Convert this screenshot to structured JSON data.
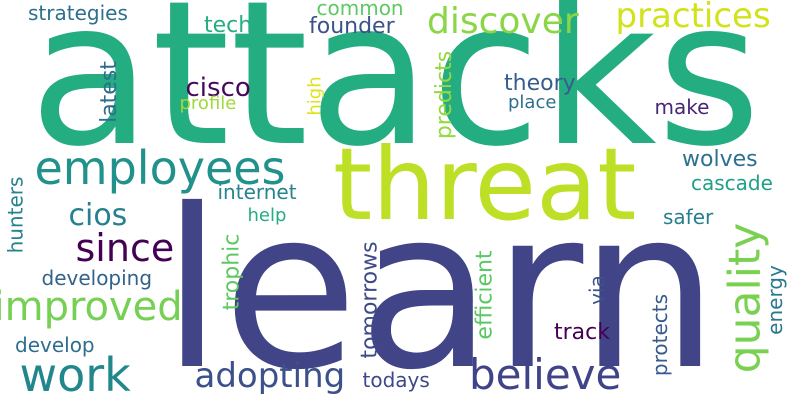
{
  "words": [
    {
      "text": "attacks",
      "color": "#25ad82",
      "vertical": false
    },
    {
      "text": "learn",
      "color": "#414487",
      "vertical": false
    },
    {
      "text": "threat",
      "color": "#bddf26",
      "vertical": false
    },
    {
      "text": "employees",
      "color": "#21918c",
      "vertical": false
    },
    {
      "text": "believe",
      "color": "#404387",
      "vertical": false
    },
    {
      "text": "quality",
      "color": "#7ad151",
      "vertical": true
    },
    {
      "text": "work",
      "color": "#22868d",
      "vertical": false
    },
    {
      "text": "improved",
      "color": "#75d054",
      "vertical": false
    },
    {
      "text": "adopting",
      "color": "#3c508b",
      "vertical": false
    },
    {
      "text": "since",
      "color": "#440154",
      "vertical": false
    },
    {
      "text": "discover",
      "color": "#8bd646",
      "vertical": false
    },
    {
      "text": "practices",
      "color": "#d2e21b",
      "vertical": false
    },
    {
      "text": "cios",
      "color": "#26818e",
      "vertical": false
    },
    {
      "text": "strategies",
      "color": "#2d708e",
      "vertical": false
    },
    {
      "text": "tech",
      "color": "#26ad81",
      "vertical": false
    },
    {
      "text": "common",
      "color": "#5ec962",
      "vertical": false
    },
    {
      "text": "founder",
      "color": "#3b528b",
      "vertical": false
    },
    {
      "text": "latest",
      "color": "#2f6c8e",
      "vertical": true
    },
    {
      "text": "cisco",
      "color": "#46085c",
      "vertical": false
    },
    {
      "text": "profile",
      "color": "#a0da39",
      "vertical": false
    },
    {
      "text": "high",
      "color": "#dde318",
      "vertical": true
    },
    {
      "text": "predicts",
      "color": "#95d840",
      "vertical": true
    },
    {
      "text": "theory",
      "color": "#365d8d",
      "vertical": false
    },
    {
      "text": "place",
      "color": "#2e6f8e",
      "vertical": false
    },
    {
      "text": "make",
      "color": "#482677",
      "vertical": false
    },
    {
      "text": "wolves",
      "color": "#2c718e",
      "vertical": false
    },
    {
      "text": "cascade",
      "color": "#1fa088",
      "vertical": false
    },
    {
      "text": "hunters",
      "color": "#26828e",
      "vertical": true
    },
    {
      "text": "internet",
      "color": "#25848e",
      "vertical": false
    },
    {
      "text": "help",
      "color": "#25ac82",
      "vertical": false
    },
    {
      "text": "safer",
      "color": "#277f8e",
      "vertical": false
    },
    {
      "text": "trophic",
      "color": "#5ec962",
      "vertical": true
    },
    {
      "text": "developing",
      "color": "#33638d",
      "vertical": false
    },
    {
      "text": "tomorrows",
      "color": "#3e4a89",
      "vertical": true
    },
    {
      "text": "efficient",
      "color": "#5ac864",
      "vertical": true
    },
    {
      "text": "energy",
      "color": "#2a788e",
      "vertical": true
    },
    {
      "text": "via",
      "color": "#3b528b",
      "vertical": true
    },
    {
      "text": "develop",
      "color": "#2e6e8e",
      "vertical": false
    },
    {
      "text": "track",
      "color": "#440154",
      "vertical": false
    },
    {
      "text": "protects",
      "color": "#375b8d",
      "vertical": true
    },
    {
      "text": "todays",
      "color": "#3e4989",
      "vertical": false
    }
  ]
}
